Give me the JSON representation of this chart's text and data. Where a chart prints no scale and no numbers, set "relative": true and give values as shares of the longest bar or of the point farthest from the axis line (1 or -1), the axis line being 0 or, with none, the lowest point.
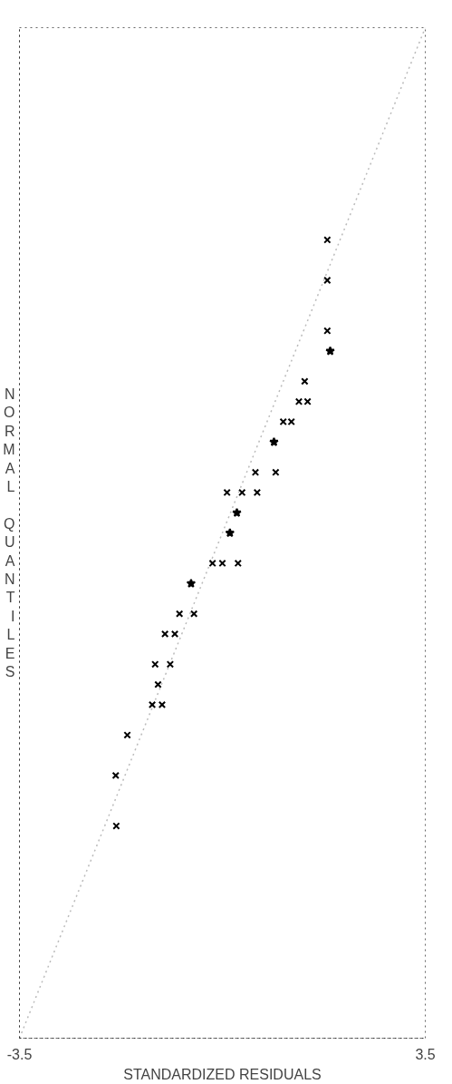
{
  "chart_data": {
    "type": "scatter",
    "xlabel": "STANDARDIZED RESIDUALS",
    "ylabel": "NORMAL QUANTILES",
    "xlim": [
      -3.5,
      3.5
    ],
    "xticks": [
      -3.5,
      3.5
    ],
    "relative": true,
    "annotations": [
      "-3.5"
    ],
    "series": [
      {
        "type": "line",
        "color": "#bbbbbb",
        "line_style": "dotted",
        "marker": "none",
        "x": [
          -3.5,
          3.5
        ],
        "values": [
          0,
          1
        ]
      },
      {
        "color": "#000000",
        "marker": "cross",
        "x": [
          1.81,
          1.81,
          1.81,
          1.42,
          1.32,
          1.47,
          1.05,
          1.19,
          0.57,
          0.92,
          0.08,
          0.34,
          0.6,
          -0.17,
          0.0,
          0.27,
          -0.74,
          -0.49,
          -0.99,
          -0.82,
          -1.16,
          -0.9,
          -1.11,
          -1.21,
          -1.04,
          -1.64,
          -1.84,
          -1.83
        ],
        "values": [
          0.79,
          0.75,
          0.7,
          0.65,
          0.63,
          0.63,
          0.61,
          0.61,
          0.56,
          0.56,
          0.54,
          0.54,
          0.54,
          0.47,
          0.47,
          0.47,
          0.42,
          0.42,
          0.4,
          0.4,
          0.37,
          0.37,
          0.35,
          0.33,
          0.33,
          0.3,
          0.26,
          0.21
        ]
      },
      {
        "color": "#000000",
        "marker": "star",
        "x": [
          1.86,
          0.89,
          0.25,
          0.13,
          -0.54
        ],
        "values": [
          0.68,
          0.59,
          0.52,
          0.5,
          0.45
        ]
      }
    ]
  }
}
